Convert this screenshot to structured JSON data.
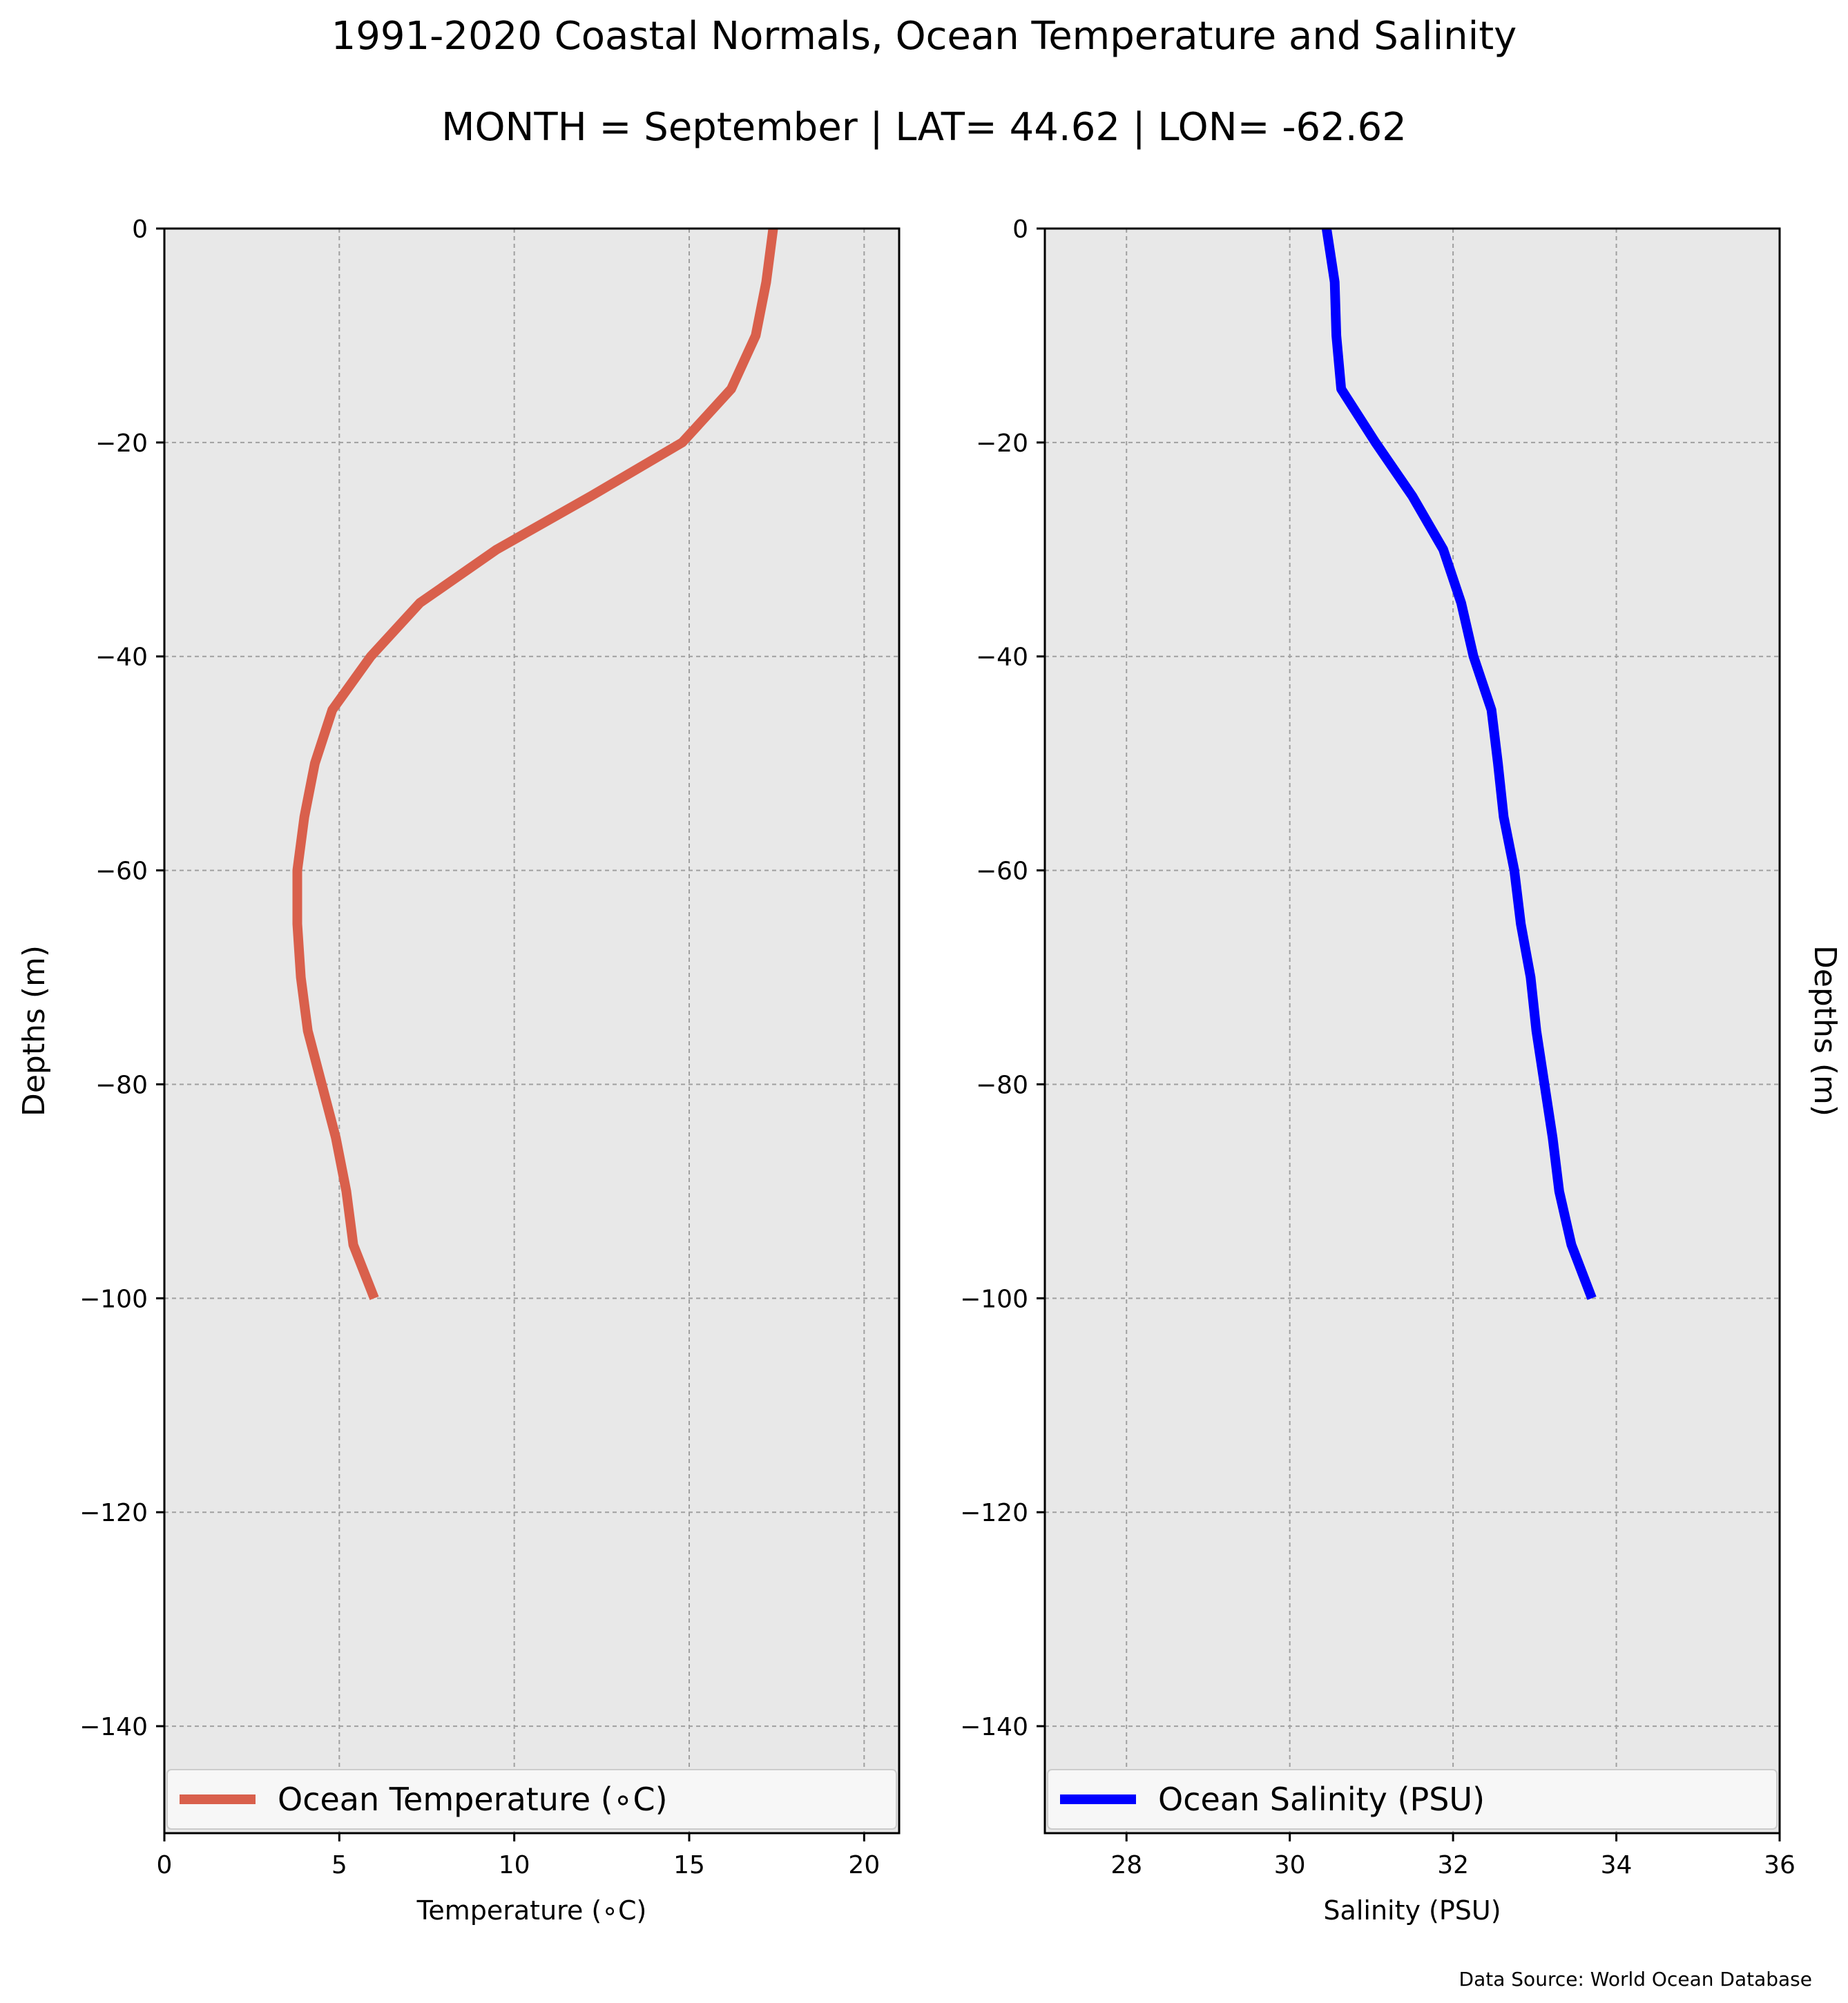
{
  "title": "1991-2020 Coastal Normals, Ocean Temperature and Salinity",
  "subtitle": "MONTH = September | LAT= 44.62 | LON= -62.62",
  "footer": "Data Source: World Ocean Database",
  "chart_data": [
    {
      "type": "line",
      "xlabel": "Temperature (∘C)",
      "ylabel": "Depths (m)",
      "xlim": [
        0,
        21
      ],
      "ylim": [
        -150,
        0
      ],
      "xticks": [
        0,
        5,
        10,
        15,
        20
      ],
      "yticks": [
        0,
        -20,
        -40,
        -60,
        -80,
        -100,
        -120,
        -140
      ],
      "ytick_labels": [
        "0",
        "−20",
        "−40",
        "−60",
        "−80",
        "−100",
        "−120",
        "−140"
      ],
      "grid": true,
      "legend_position": "bottom",
      "series": [
        {
          "name": "Ocean Temperature (∘C)",
          "color": "#d9604c",
          "x": [
            17.4,
            17.2,
            16.9,
            16.2,
            14.8,
            12.2,
            9.5,
            7.3,
            5.9,
            4.8,
            4.3,
            4.0,
            3.8,
            3.8,
            3.9,
            4.1,
            4.5,
            4.9,
            5.2,
            5.4,
            6.0
          ],
          "y": [
            0,
            -5,
            -10,
            -15,
            -20,
            -25,
            -30,
            -35,
            -40,
            -45,
            -50,
            -55,
            -60,
            -65,
            -70,
            -75,
            -80,
            -85,
            -90,
            -95,
            -100
          ]
        }
      ]
    },
    {
      "type": "line",
      "xlabel": "Salinity (PSU)",
      "ylabel": "Depths (m)",
      "xlim": [
        27,
        36
      ],
      "ylim": [
        -150,
        0
      ],
      "xticks": [
        28,
        30,
        32,
        34,
        36
      ],
      "yticks": [
        0,
        -20,
        -40,
        -60,
        -80,
        -100,
        -120,
        -140
      ],
      "ytick_labels": [
        "0",
        "−20",
        "−40",
        "−60",
        "−80",
        "−100",
        "−120",
        "−140"
      ],
      "grid": true,
      "legend_position": "bottom",
      "series": [
        {
          "name": "Ocean Salinity (PSU)",
          "color": "#0000ff",
          "x": [
            30.45,
            30.55,
            30.57,
            30.63,
            31.05,
            31.5,
            31.88,
            32.1,
            32.25,
            32.47,
            32.55,
            32.62,
            32.75,
            32.83,
            32.95,
            33.02,
            33.12,
            33.22,
            33.3,
            33.45,
            33.7
          ],
          "y": [
            0,
            -5,
            -10,
            -15,
            -20,
            -25,
            -30,
            -35,
            -40,
            -45,
            -50,
            -55,
            -60,
            -65,
            -70,
            -75,
            -80,
            -85,
            -90,
            -95,
            -100
          ]
        }
      ]
    }
  ]
}
